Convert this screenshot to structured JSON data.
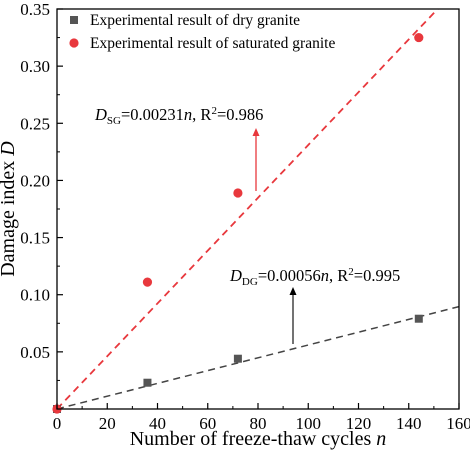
{
  "chart_data": {
    "type": "scatter",
    "xlabel": "Number of freeze-thaw cycles",
    "xlabel_var": "n",
    "ylabel": "Damage index",
    "ylabel_var": "D",
    "xlim": [
      0,
      160
    ],
    "ylim": [
      0,
      0.35
    ],
    "x_ticks": [
      0,
      20,
      40,
      60,
      80,
      100,
      120,
      140,
      160
    ],
    "y_ticks": [
      0.05,
      0.1,
      0.15,
      0.2,
      0.25,
      0.3,
      0.35
    ],
    "y_tick_labels": [
      "0.05",
      "0.10",
      "0.15",
      "0.20",
      "0.25",
      "0.30",
      "0.35"
    ],
    "grid": false,
    "legend_position": "top-left",
    "series": [
      {
        "name": "Experimental result of dry granite",
        "marker": "square",
        "color": "#555555",
        "x": [
          0,
          36,
          72,
          144
        ],
        "y": [
          0.0,
          0.023,
          0.044,
          0.079
        ],
        "fit": {
          "slope": 0.00056,
          "line_style": "dashed",
          "color": "#444444",
          "label_main": "D",
          "label_sub": "DG",
          "label_eq": "=0.00056",
          "label_var": "n",
          "label_r2_prefix": ", R",
          "label_r2_exp": "2",
          "label_r2_value": "=0.995",
          "arrow_color": "#000000"
        }
      },
      {
        "name": "Experimental result of saturated granite",
        "marker": "circle",
        "color": "#e8383d",
        "x": [
          0,
          36,
          72,
          144
        ],
        "y": [
          0.0,
          0.111,
          0.189,
          0.325
        ],
        "fit": {
          "slope": 0.00231,
          "line_style": "dashed",
          "color": "#e8383d",
          "label_main": "D",
          "label_sub": "SG",
          "label_eq": "=0.00231",
          "label_var": "n",
          "label_r2_prefix": ", R",
          "label_r2_exp": "2",
          "label_r2_value": "=0.986",
          "arrow_color": "#e8383d"
        }
      }
    ]
  }
}
